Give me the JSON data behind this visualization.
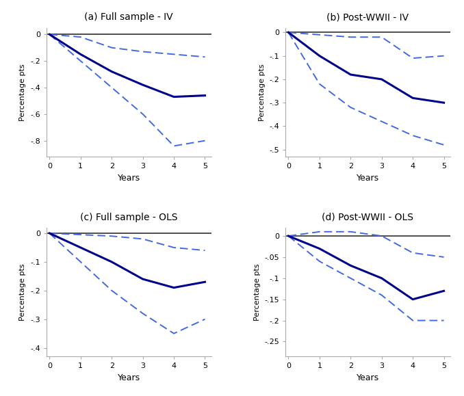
{
  "panels": [
    {
      "title": "(a) Full sample - IV",
      "x": [
        0,
        1,
        2,
        3,
        4,
        5
      ],
      "solid": [
        0,
        -0.15,
        -0.28,
        -0.38,
        -0.47,
        -0.46
      ],
      "upper_ci": [
        0,
        -0.02,
        -0.1,
        -0.13,
        -0.15,
        -0.17
      ],
      "lower_ci": [
        0,
        -0.2,
        -0.4,
        -0.6,
        -0.84,
        -0.8
      ],
      "ylim": [
        -0.92,
        0.05
      ],
      "yticks": [
        0,
        -0.2,
        -0.4,
        -0.6,
        -0.8
      ],
      "ytick_labels": [
        "0",
        "-.2",
        "-.4",
        "-.6",
        "-.8"
      ]
    },
    {
      "title": "(b) Post-WWII - IV",
      "x": [
        0,
        1,
        2,
        3,
        4,
        5
      ],
      "solid": [
        0,
        -0.1,
        -0.18,
        -0.2,
        -0.28,
        -0.3
      ],
      "upper_ci": [
        0,
        -0.01,
        -0.02,
        -0.02,
        -0.11,
        -0.1
      ],
      "lower_ci": [
        0,
        -0.22,
        -0.32,
        -0.38,
        -0.44,
        -0.48
      ],
      "ylim": [
        -0.53,
        0.02
      ],
      "yticks": [
        0,
        -0.1,
        -0.2,
        -0.3,
        -0.4,
        -0.5
      ],
      "ytick_labels": [
        "0",
        "-.1",
        "-.2",
        "-.3",
        "-.4",
        "-.5"
      ]
    },
    {
      "title": "(c) Full sample - OLS",
      "x": [
        0,
        1,
        2,
        3,
        4,
        5
      ],
      "solid": [
        0,
        -0.05,
        -0.1,
        -0.16,
        -0.19,
        -0.17
      ],
      "upper_ci": [
        0,
        -0.005,
        -0.01,
        -0.02,
        -0.05,
        -0.06
      ],
      "lower_ci": [
        0,
        -0.1,
        -0.2,
        -0.28,
        -0.35,
        -0.3
      ],
      "ylim": [
        -0.43,
        0.02
      ],
      "yticks": [
        0,
        -0.1,
        -0.2,
        -0.3,
        -0.4
      ],
      "ytick_labels": [
        "0",
        "-.1",
        "-.2",
        "-.3",
        "-.4"
      ]
    },
    {
      "title": "(d) Post-WWII - OLS",
      "x": [
        0,
        1,
        2,
        3,
        4,
        5
      ],
      "solid": [
        0,
        -0.03,
        -0.07,
        -0.1,
        -0.15,
        -0.13
      ],
      "upper_ci": [
        0,
        0.01,
        0.01,
        0.0,
        -0.04,
        -0.05
      ],
      "lower_ci": [
        0,
        -0.06,
        -0.1,
        -0.14,
        -0.2,
        -0.2
      ],
      "ylim": [
        -0.285,
        0.02
      ],
      "yticks": [
        0,
        -0.05,
        -0.1,
        -0.15,
        -0.2,
        -0.25
      ],
      "ytick_labels": [
        "0",
        "-.05",
        "-.1",
        "-.15",
        "-.2",
        "-.25"
      ]
    }
  ],
  "solid_color": "#00008B",
  "ci_color": "#4169E1",
  "zero_line_color": "#303030",
  "solid_lw": 2.2,
  "ci_lw": 1.4,
  "ci_dash": [
    6,
    3
  ],
  "xlabel": "Years",
  "ylabel": "Percentage pts",
  "xticks": [
    0,
    1,
    2,
    3,
    4,
    5
  ]
}
